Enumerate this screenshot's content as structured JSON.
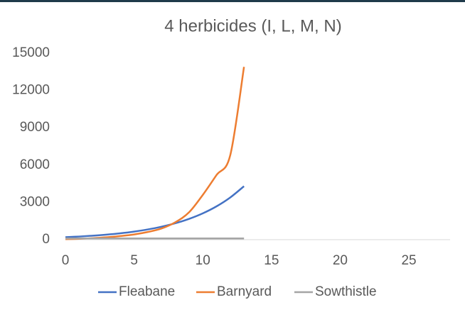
{
  "chart_data": {
    "type": "line",
    "title": "4 herbicides (I, L, M, N)",
    "x": [
      0,
      1,
      2,
      3,
      4,
      5,
      6,
      7,
      8,
      9,
      10,
      11,
      12,
      13
    ],
    "series": [
      {
        "name": "Fleabane",
        "color": "#4472c4",
        "values": [
          200,
          253,
          321,
          406,
          514,
          651,
          824,
          1044,
          1321,
          1673,
          2118,
          2681,
          3395,
          4300
        ]
      },
      {
        "name": "Barnyard",
        "color": "#ed7d31",
        "values": [
          40,
          70,
          120,
          190,
          290,
          420,
          620,
          900,
          1400,
          2200,
          3600,
          5200,
          6800,
          13900
        ]
      },
      {
        "name": "Sowthistle",
        "color": "#a5a5a5",
        "values": [
          100,
          100,
          100,
          100,
          100,
          100,
          100,
          100,
          100,
          100,
          100,
          100,
          100,
          100
        ]
      }
    ],
    "xlim": [
      0,
      28
    ],
    "xticks": [
      0,
      5,
      10,
      15,
      20,
      25
    ],
    "ylim": [
      0,
      15000
    ],
    "yticks": [
      0,
      3000,
      6000,
      9000,
      12000,
      15000
    ],
    "grid": false,
    "legend": "bottom"
  }
}
